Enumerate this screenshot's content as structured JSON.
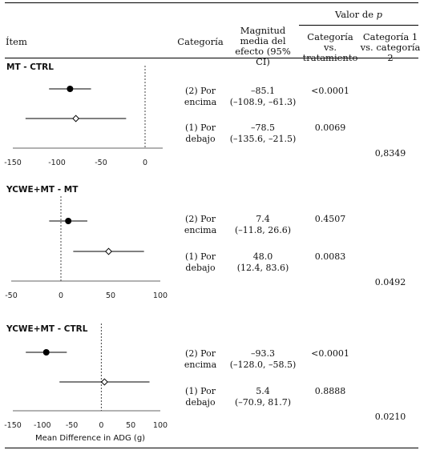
{
  "header": {
    "item": "Ítem",
    "category": "Categoría",
    "effect": "Magnitud media del efecto (95% CI)",
    "pvalue_group": "Valor de p",
    "pvalue_group_main": "Valor de",
    "pvalue_group_p": "p",
    "col_cat_vs_trt": "Categoría vs. tratamiento",
    "col_cat1_vs_cat2": "Categoría 1 vs. categoría 2"
  },
  "colors": {
    "line": "#000000",
    "filled_marker": "#000000",
    "open_marker": "#ffffff"
  },
  "panels": [
    {
      "title": "MT - CTRL",
      "rows": [
        {
          "category": "(2) Por encima",
          "effect": "–85.1",
          "ci": "(–108.9, –61.3)",
          "p_vs_trt": "<0.0001"
        },
        {
          "category": "(1) Por debajo",
          "effect": "–78.5",
          "ci": "(–135.6, –21.5)",
          "p_vs_trt": "0.0069"
        }
      ],
      "p_cat1_vs_cat2": "0,8349",
      "ticks": [
        "-150",
        "-100",
        "-50",
        "0"
      ]
    },
    {
      "title": "YCWE+MT - MT",
      "rows": [
        {
          "category": "(2) Por encima",
          "effect": "7.4",
          "ci": "(–11.8, 26.6)",
          "p_vs_trt": "0.4507"
        },
        {
          "category": "(1) Por debajo",
          "effect": "48.0",
          "ci": "(12.4, 83.6)",
          "p_vs_trt": "0.0083"
        }
      ],
      "p_cat1_vs_cat2": "0.0492",
      "ticks": [
        "-50",
        "0",
        "50",
        "100"
      ]
    },
    {
      "title": "YCWE+MT - CTRL",
      "rows": [
        {
          "category": "(2) Por encima",
          "effect": "–93.3",
          "ci": "(–128.0, –58.5)",
          "p_vs_trt": "<0.0001"
        },
        {
          "category": "(1) Por debajo",
          "effect": "5.4",
          "ci": "(–70.9, 81.7)",
          "p_vs_trt": "0.8888"
        }
      ],
      "p_cat1_vs_cat2": "0.0210",
      "ticks": [
        "-150",
        "-100",
        "-50",
        "0",
        "50",
        "100"
      ]
    }
  ],
  "chart_data": [
    {
      "type": "scatter",
      "title": "MT - CTRL",
      "xlabel": "",
      "xlim": [
        -150,
        20
      ],
      "x_ticks": [
        -150,
        -100,
        -50,
        0
      ],
      "reference_line": 0,
      "series": [
        {
          "name": "(2) Por encima",
          "marker": "filled-circle",
          "points": [
            {
              "x": -85.1,
              "lo": -108.9,
              "hi": -61.3
            }
          ]
        },
        {
          "name": "(1) Por debajo",
          "marker": "open-diamond",
          "points": [
            {
              "x": -78.5,
              "lo": -135.6,
              "hi": -21.5
            }
          ]
        }
      ]
    },
    {
      "type": "scatter",
      "title": "YCWE+MT - MT",
      "xlabel": "",
      "xlim": [
        -50,
        100
      ],
      "x_ticks": [
        -50,
        0,
        50,
        100
      ],
      "reference_line": 0,
      "series": [
        {
          "name": "(2) Por encima",
          "marker": "filled-circle",
          "points": [
            {
              "x": 7.4,
              "lo": -11.8,
              "hi": 26.6
            }
          ]
        },
        {
          "name": "(1) Por debajo",
          "marker": "open-diamond",
          "points": [
            {
              "x": 48.0,
              "lo": 12.4,
              "hi": 83.6
            }
          ]
        }
      ]
    },
    {
      "type": "scatter",
      "title": "YCWE+MT - CTRL",
      "xlabel": "Mean Difference in ADG (g)",
      "xlim": [
        -150,
        100
      ],
      "x_ticks": [
        -150,
        -100,
        -50,
        0,
        50,
        100
      ],
      "reference_line": 0,
      "series": [
        {
          "name": "(2) Por encima",
          "marker": "filled-circle",
          "points": [
            {
              "x": -93.3,
              "lo": -128.0,
              "hi": -58.5
            }
          ]
        },
        {
          "name": "(1) Por debajo",
          "marker": "open-diamond",
          "points": [
            {
              "x": 5.4,
              "lo": -70.9,
              "hi": 81.7
            }
          ]
        }
      ]
    }
  ]
}
